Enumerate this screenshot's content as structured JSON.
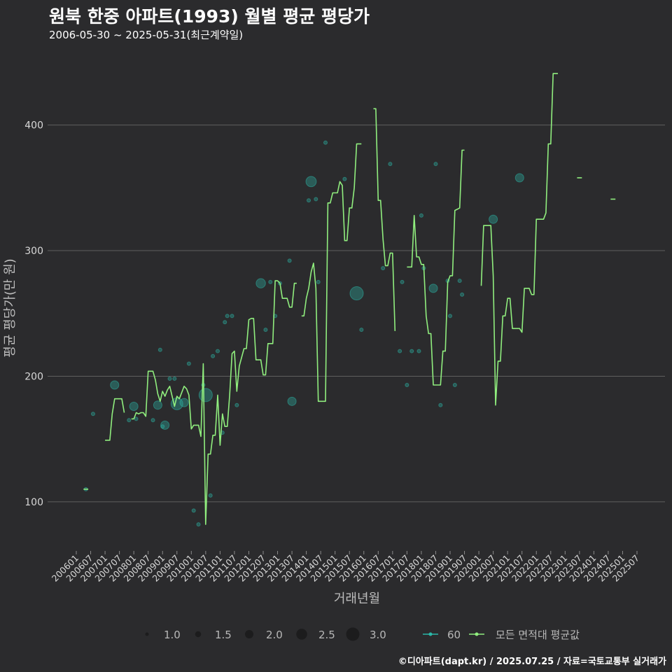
{
  "chart_data": {
    "type": "line",
    "title": "원북 한중 아파트(1993) 월별 평균 평당가",
    "subtitle": "2006-05-30 ~ 2025-05-31(최근계약일)",
    "xlabel": "거래년월",
    "ylabel": "평균 평당가(만 원)",
    "ylim": [
      62,
      455
    ],
    "yticks": [
      100,
      200,
      300,
      400
    ],
    "grid": true,
    "x_tick_labels": [
      "200601",
      "200607",
      "200701",
      "200707",
      "200801",
      "200807",
      "200901",
      "200907",
      "201001",
      "201007",
      "201101",
      "201107",
      "201201",
      "201207",
      "201301",
      "201307",
      "201401",
      "201407",
      "201501",
      "201507",
      "201601",
      "201607",
      "201701",
      "201707",
      "201801",
      "201807",
      "201901",
      "201907",
      "202001",
      "202007",
      "202101",
      "202107",
      "202201",
      "202207",
      "202301",
      "202307",
      "202401",
      "202407",
      "202501",
      "202507"
    ],
    "series": [
      {
        "name": "모든 면적대 평균값",
        "color": "#90ee7e",
        "segments": [
          [
            [
              "200604",
              110
            ],
            [
              "200606",
              110
            ]
          ],
          [
            [
              "200701",
              149
            ],
            [
              "200703",
              149
            ],
            [
              "200704",
              170
            ],
            [
              "200705",
              182
            ],
            [
              "200708",
              182
            ],
            [
              "200709",
              171
            ]
          ],
          [
            [
              "200712",
              166
            ],
            [
              "200801",
              166
            ],
            [
              "200802",
              171
            ],
            [
              "200803",
              170
            ],
            [
              "200804",
              171
            ],
            [
              "200805",
              171
            ],
            [
              "200806",
              168
            ],
            [
              "200807",
              204
            ],
            [
              "200809",
              204
            ],
            [
              "200810",
              197
            ],
            [
              "200811",
              186
            ],
            [
              "200812",
              180
            ],
            [
              "200901",
              188
            ],
            [
              "200902",
              184
            ],
            [
              "200903",
              189
            ],
            [
              "200904",
              192
            ],
            [
              "200905",
              184
            ],
            [
              "200906",
              176
            ],
            [
              "200907",
              184
            ],
            [
              "200908",
              182
            ],
            [
              "200909",
              187
            ],
            [
              "200910",
              192
            ],
            [
              "200911",
              190
            ],
            [
              "200912",
              185
            ],
            [
              "201001",
              158
            ],
            [
              "201002",
              161
            ],
            [
              "201004",
              161
            ],
            [
              "201005",
              152
            ],
            [
              "201006",
              210
            ],
            [
              "201007",
              82
            ],
            [
              "201008",
              138
            ],
            [
              "201009",
              138
            ],
            [
              "201010",
              153
            ],
            [
              "201011",
              153
            ],
            [
              "201012",
              185
            ],
            [
              "201101",
              145
            ],
            [
              "201102",
              170
            ],
            [
              "201103",
              160
            ],
            [
              "201104",
              160
            ],
            [
              "201105",
              185
            ],
            [
              "201106",
              218
            ],
            [
              "201107",
              220
            ],
            [
              "201108",
              188
            ],
            [
              "201109",
              208
            ],
            [
              "201110",
              215
            ],
            [
              "201111",
              222
            ],
            [
              "201112",
              222
            ],
            [
              "201201",
              245
            ],
            [
              "201202",
              246
            ],
            [
              "201203",
              246
            ],
            [
              "201204",
              213
            ],
            [
              "201205",
              213
            ],
            [
              "201206",
              213
            ],
            [
              "201207",
              201
            ],
            [
              "201208",
              201
            ],
            [
              "201209",
              226
            ],
            [
              "201210",
              226
            ],
            [
              "201211",
              226
            ],
            [
              "201212",
              276
            ],
            [
              "201301",
              276
            ],
            [
              "201302",
              274
            ],
            [
              "201303",
              262
            ],
            [
              "201304",
              262
            ],
            [
              "201305",
              262
            ],
            [
              "201306",
              255
            ],
            [
              "201307",
              255
            ],
            [
              "201308",
              274
            ],
            [
              "201309",
              274
            ]
          ],
          [
            [
              "201311",
              248
            ],
            [
              "201312",
              248
            ],
            [
              "201401",
              262
            ],
            [
              "201402",
              270
            ],
            [
              "201403",
              283
            ],
            [
              "201404",
              290
            ],
            [
              "201405",
              270
            ],
            [
              "201406",
              180
            ],
            [
              "201409",
              180
            ],
            [
              "201410",
              338
            ],
            [
              "201411",
              338
            ],
            [
              "201412",
              346
            ],
            [
              "201501",
              346
            ],
            [
              "201502",
              346
            ],
            [
              "201503",
              355
            ],
            [
              "201504",
              352
            ],
            [
              "201505",
              308
            ],
            [
              "201506",
              308
            ],
            [
              "201507",
              334
            ],
            [
              "201508",
              334
            ],
            [
              "201509",
              350
            ],
            [
              "201510",
              385
            ],
            [
              "201511",
              385
            ],
            [
              "201512",
              385
            ]
          ],
          [
            [
              "201605",
              413
            ],
            [
              "201606",
              413
            ],
            [
              "201607",
              340
            ],
            [
              "201608",
              340
            ],
            [
              "201609",
              309
            ],
            [
              "201610",
              288
            ],
            [
              "201611",
              288
            ],
            [
              "201612",
              298
            ],
            [
              "201701",
              298
            ],
            [
              "201702",
              236
            ]
          ],
          [
            [
              "201707",
              287
            ],
            [
              "201709",
              287
            ],
            [
              "201710",
              328
            ],
            [
              "201711",
              295
            ],
            [
              "201712",
              295
            ],
            [
              "201801",
              289
            ],
            [
              "201802",
              289
            ],
            [
              "201803",
              248
            ],
            [
              "201804",
              234
            ],
            [
              "201805",
              234
            ],
            [
              "201806",
              193
            ],
            [
              "201809",
              193
            ],
            [
              "201810",
              220
            ],
            [
              "201811",
              220
            ],
            [
              "201812",
              275
            ],
            [
              "201901",
              280
            ],
            [
              "201902",
              280
            ],
            [
              "201903",
              332
            ],
            [
              "201904",
              333
            ],
            [
              "201905",
              334
            ],
            [
              "201906",
              380
            ],
            [
              "201907",
              380
            ]
          ],
          [
            [
              "202002",
              272
            ],
            [
              "202003",
              320
            ],
            [
              "202006",
              320
            ],
            [
              "202007",
              280
            ],
            [
              "202008",
              177
            ],
            [
              "202009",
              212
            ],
            [
              "202010",
              212
            ],
            [
              "202011",
              248
            ],
            [
              "202012",
              248
            ],
            [
              "202101",
              262
            ],
            [
              "202102",
              262
            ],
            [
              "202103",
              238
            ],
            [
              "202106",
              238
            ],
            [
              "202107",
              235
            ],
            [
              "202108",
              270
            ],
            [
              "202110",
              270
            ],
            [
              "202111",
              265
            ],
            [
              "202112",
              265
            ],
            [
              "202201",
              325
            ],
            [
              "202204",
              325
            ],
            [
              "202205",
              330
            ],
            [
              "202206",
              385
            ],
            [
              "202207",
              385
            ],
            [
              "202208",
              441
            ],
            [
              "202210",
              441
            ]
          ],
          [
            [
              "202306",
              358
            ],
            [
              "202308",
              358
            ]
          ],
          [
            [
              "202408",
              341
            ],
            [
              "202410",
              341
            ]
          ]
        ]
      },
      {
        "name": "60",
        "color": "#2bb8a8",
        "points": [
          [
            "200605",
            110,
            1
          ],
          [
            "200608",
            170,
            1
          ],
          [
            "200705",
            193,
            2
          ],
          [
            "200711",
            165,
            1
          ],
          [
            "200801",
            176,
            2
          ],
          [
            "200802",
            166,
            1
          ],
          [
            "200809",
            165,
            1
          ],
          [
            "200811",
            177,
            2
          ],
          [
            "200812",
            221,
            1
          ],
          [
            "200901",
            160,
            1
          ],
          [
            "200902",
            161,
            2
          ],
          [
            "200904",
            198,
            1
          ],
          [
            "200906",
            198,
            1
          ],
          [
            "200907",
            178,
            2.7
          ],
          [
            "200910",
            179,
            2
          ],
          [
            "200912",
            210,
            1
          ],
          [
            "201002",
            93,
            1
          ],
          [
            "201004",
            82,
            1
          ],
          [
            "201006",
            193,
            1
          ],
          [
            "201007",
            185,
            3
          ],
          [
            "201009",
            105,
            1
          ],
          [
            "201010",
            216,
            1
          ],
          [
            "201012",
            220,
            1
          ],
          [
            "201102",
            155,
            1
          ],
          [
            "201103",
            243,
            1
          ],
          [
            "201104",
            248,
            1
          ],
          [
            "201106",
            248,
            1
          ],
          [
            "201108",
            177,
            1
          ],
          [
            "201206",
            274,
            2.2
          ],
          [
            "201208",
            237,
            1
          ],
          [
            "201210",
            275,
            1
          ],
          [
            "201212",
            248,
            1
          ],
          [
            "201302",
            274,
            1
          ],
          [
            "201306",
            292,
            1
          ],
          [
            "201307",
            180,
            2
          ],
          [
            "201402",
            340,
            1
          ],
          [
            "201403",
            355,
            2.4
          ],
          [
            "201405",
            341,
            1
          ],
          [
            "201406",
            275,
            1
          ],
          [
            "201409",
            386,
            1
          ],
          [
            "201505",
            357,
            1
          ],
          [
            "201510",
            266,
            3
          ],
          [
            "201512",
            237,
            1
          ],
          [
            "201609",
            286,
            1
          ],
          [
            "201612",
            369,
            1
          ],
          [
            "201704",
            220,
            1
          ],
          [
            "201705",
            275,
            1
          ],
          [
            "201707",
            193,
            1
          ],
          [
            "201709",
            220,
            1
          ],
          [
            "201712",
            220,
            1
          ],
          [
            "201801",
            328,
            1
          ],
          [
            "201802",
            286,
            1
          ],
          [
            "201806",
            270,
            2
          ],
          [
            "201807",
            369,
            1
          ],
          [
            "201809",
            177,
            1
          ],
          [
            "201812",
            276,
            1
          ],
          [
            "201901",
            248,
            1
          ],
          [
            "201903",
            193,
            1
          ],
          [
            "201905",
            276,
            1
          ],
          [
            "201906",
            265,
            1
          ],
          [
            "202007",
            325,
            2
          ],
          [
            "202106",
            358,
            2
          ]
        ]
      }
    ],
    "legend": {
      "position": "bottom",
      "size_title": "",
      "size_entries": [
        "1.0",
        "1.5",
        "2.0",
        "2.5",
        "3.0"
      ],
      "color_entries": [
        "60",
        "모든 면적대 평균값"
      ]
    },
    "footer": "©디아파트(dapt.kr) / 2025.07.25 / 자료=국토교통부 실거래가",
    "colors": {
      "background": "#2b2b2d",
      "grid": "#5f5f5f",
      "line": "#90ee7e",
      "bubble": "#2bb8a8",
      "text": "#eaeaea",
      "axis_title": "#bdbdbd"
    }
  }
}
